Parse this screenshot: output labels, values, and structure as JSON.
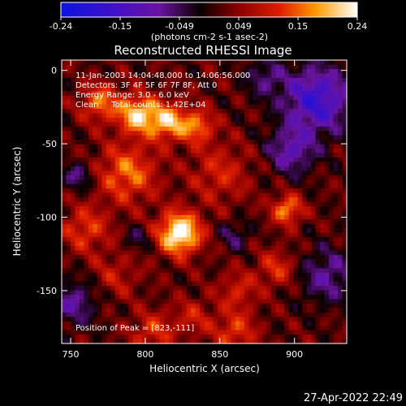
{
  "chart_data": {
    "type": "heatmap",
    "title": "Reconstructed RHESSI Image",
    "xlabel": "Heliocentric X (arcsec)",
    "ylabel": "Heliocentric Y (arcsec)",
    "xlim": [
      744,
      935
    ],
    "ylim": [
      -186,
      7
    ],
    "x_ticks": [
      750,
      800,
      850,
      900
    ],
    "y_ticks": [
      0,
      -50,
      -100,
      -150
    ],
    "colorbar": {
      "ticks": [
        "-0.24",
        "-0.15",
        "-0.049",
        "0.049",
        "0.15",
        "0.24"
      ],
      "range": [
        -0.24,
        0.24
      ],
      "units": "(photons cm-2 s-1 asec-2)"
    },
    "annotations": [
      "11-Jan-2003 14:04:48.000 to 14:06:56.000",
      "Detectors: 3F 4F 5F 6F 7F 8F, Att 0",
      "Energy Range: 3.0 - 6.0 keV",
      "Clean     Total counts: 1.42E+04"
    ],
    "peak_label": "Position of Peak = [823,-111]",
    "peak": {
      "x": 823,
      "y": -111,
      "value": 0.24
    },
    "sources": [
      {
        "x": 823,
        "y": -111,
        "sigma": 10,
        "amp": 0.24
      },
      {
        "x": 795,
        "y": -30,
        "sigma": 9,
        "amp": 0.19
      },
      {
        "x": 815,
        "y": -35,
        "sigma": 9,
        "amp": 0.17
      },
      {
        "x": 770,
        "y": -22,
        "sigma": 9,
        "amp": 0.13
      },
      {
        "x": 835,
        "y": -38,
        "sigma": 8,
        "amp": 0.13
      },
      {
        "x": 788,
        "y": -70,
        "sigma": 14,
        "amp": 0.13
      },
      {
        "x": 760,
        "y": -108,
        "sigma": 11,
        "amp": 0.1
      },
      {
        "x": 895,
        "y": -95,
        "sigma": 7,
        "amp": 0.15
      },
      {
        "x": 888,
        "y": -135,
        "sigma": 9,
        "amp": 0.09
      },
      {
        "x": 862,
        "y": -150,
        "sigma": 9,
        "amp": 0.08
      },
      {
        "x": 860,
        "y": -178,
        "sigma": 10,
        "amp": 0.1
      },
      {
        "x": 832,
        "y": -168,
        "sigma": 9,
        "amp": 0.07
      },
      {
        "x": 805,
        "y": -178,
        "sigma": 10,
        "amp": 0.09
      },
      {
        "x": 850,
        "y": -70,
        "sigma": 14,
        "amp": 0.08
      },
      {
        "x": 780,
        "y": -140,
        "sigma": 11,
        "amp": 0.06
      },
      {
        "x": 915,
        "y": -20,
        "sigma": 16,
        "amp": -0.18
      },
      {
        "x": 898,
        "y": -55,
        "sigma": 11,
        "amp": -0.12
      },
      {
        "x": 922,
        "y": -140,
        "sigma": 13,
        "amp": -0.1
      },
      {
        "x": 752,
        "y": -158,
        "sigma": 11,
        "amp": -0.1
      },
      {
        "x": 755,
        "y": -72,
        "sigma": 7,
        "amp": -0.09
      },
      {
        "x": 880,
        "y": -5,
        "sigma": 9,
        "amp": -0.08
      },
      {
        "x": 860,
        "y": -112,
        "sigma": 7,
        "amp": -0.07
      },
      {
        "x": 795,
        "y": -115,
        "sigma": 6,
        "amp": -0.06
      }
    ]
  },
  "footer": {
    "date": "27-Apr-2022 22:49"
  }
}
